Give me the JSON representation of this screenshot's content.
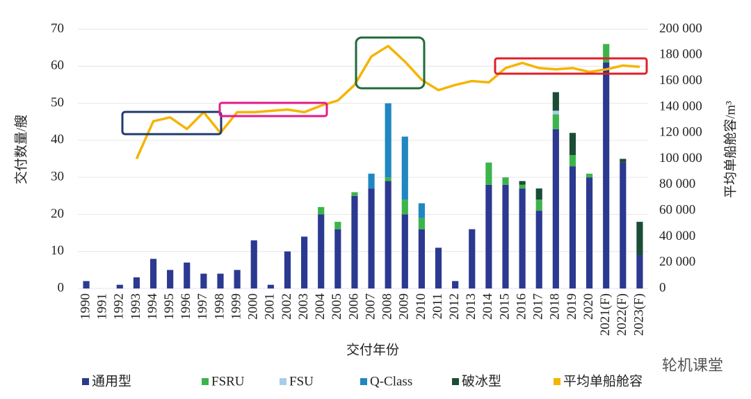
{
  "chart_data": {
    "type": "bar",
    "stacked": true,
    "xlabel": "交付年份",
    "ylabel": "交付数量/艘",
    "y2label": "平均单船舱容/m³",
    "watermark": "轮机课堂",
    "categories": [
      "1990",
      "1991",
      "1992",
      "1993",
      "1994",
      "1995",
      "1996",
      "1997",
      "1998",
      "1999",
      "2000",
      "2001",
      "2002",
      "2003",
      "2004",
      "2005",
      "2006",
      "2007",
      "2008",
      "2009",
      "2010",
      "2011",
      "2012",
      "2013",
      "2014",
      "2015",
      "2016",
      "2017",
      "2018",
      "2019",
      "2020",
      "2021(F)",
      "2022(F)",
      "2023(F)"
    ],
    "series": [
      {
        "name": "通用型",
        "color": "#2b3990",
        "values": [
          2,
          0,
          1,
          3,
          8,
          5,
          7,
          4,
          4,
          5,
          13,
          1,
          10,
          14,
          20,
          16,
          25,
          27,
          29,
          20,
          16,
          11,
          2,
          16,
          28,
          28,
          27,
          21,
          43,
          33,
          30,
          61,
          34,
          9
        ]
      },
      {
        "name": "FSRU",
        "color": "#3cb44b",
        "values": [
          0,
          0,
          0,
          0,
          0,
          0,
          0,
          0,
          0,
          0,
          0,
          0,
          0,
          0,
          2,
          2,
          1,
          0,
          1,
          4,
          3,
          0,
          0,
          0,
          6,
          2,
          1,
          3,
          4,
          3,
          1,
          5,
          0,
          0
        ]
      },
      {
        "name": "FSU",
        "color": "#a9cce9",
        "values": [
          0,
          0,
          0,
          0,
          0,
          0,
          0,
          0,
          0,
          0,
          0,
          0,
          0,
          0,
          0,
          0,
          0,
          0,
          0,
          0,
          0,
          0,
          0,
          0,
          0,
          0,
          0,
          0,
          1,
          0,
          0,
          0,
          0,
          0
        ]
      },
      {
        "name": "Q-Class",
        "color": "#1f87c1",
        "values": [
          0,
          0,
          0,
          0,
          0,
          0,
          0,
          0,
          0,
          0,
          0,
          0,
          0,
          0,
          0,
          0,
          0,
          4,
          20,
          17,
          4,
          0,
          0,
          0,
          0,
          0,
          0,
          0,
          0,
          0,
          0,
          0,
          0,
          0
        ]
      },
      {
        "name": "破冰型",
        "color": "#1b4d36",
        "values": [
          0,
          0,
          0,
          0,
          0,
          0,
          0,
          0,
          0,
          0,
          0,
          0,
          0,
          0,
          0,
          0,
          0,
          0,
          0,
          0,
          0,
          0,
          0,
          0,
          0,
          0,
          1,
          3,
          5,
          6,
          0,
          0,
          1,
          9
        ]
      },
      {
        "name": "平均单船舱容",
        "color": "#f5b400",
        "type": "line",
        "axis": "y2",
        "values": [
          null,
          null,
          null,
          100000,
          129000,
          132000,
          123000,
          136000,
          120000,
          136000,
          136000,
          137000,
          138000,
          136000,
          141000,
          145000,
          157000,
          179000,
          187000,
          175000,
          161000,
          153000,
          157000,
          160000,
          159000,
          170000,
          174000,
          170000,
          169000,
          170000,
          167000,
          169000,
          172000,
          171000
        ]
      }
    ],
    "ylim": [
      0,
      70
    ],
    "yticks": [
      0,
      10,
      20,
      30,
      40,
      50,
      60,
      70
    ],
    "y2lim": [
      0,
      200000
    ],
    "y2ticks": [
      0,
      {
        "value": 20000,
        "label": "20 000"
      },
      {
        "value": 40000,
        "label": "40 000"
      },
      {
        "value": 60000,
        "label": "60 000"
      },
      {
        "value": 80000,
        "label": "80 000"
      },
      {
        "value": 100000,
        "label": "100 000"
      },
      {
        "value": 120000,
        "label": "120 000"
      },
      {
        "value": 140000,
        "label": "140 000"
      },
      {
        "value": 160000,
        "label": "160 000"
      },
      {
        "value": 180000,
        "label": "180 000"
      },
      {
        "value": 200000,
        "label": "200 000"
      }
    ],
    "grid": true
  }
}
